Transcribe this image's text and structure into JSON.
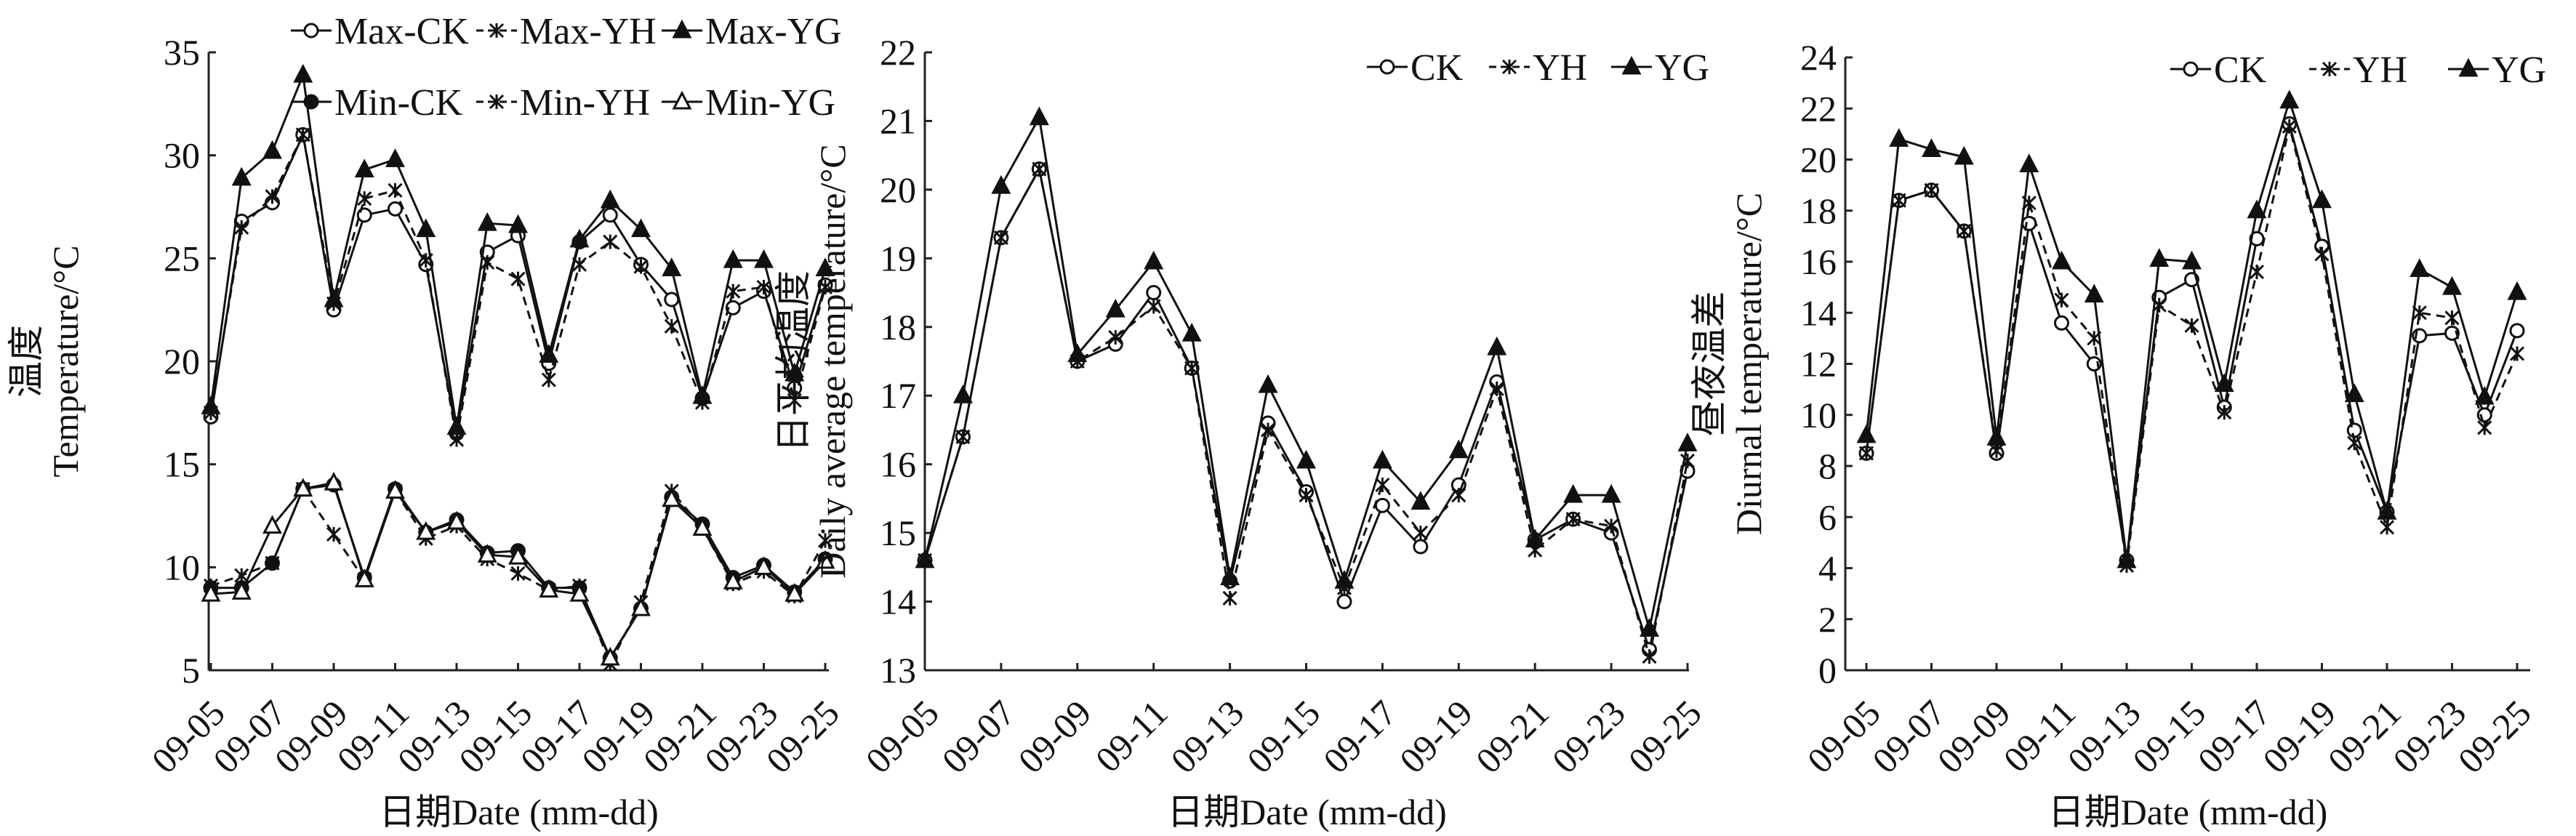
{
  "chart_data": [
    {
      "type": "line",
      "title": "",
      "xlabel": "日期Date (mm-dd)",
      "ylabel_cn": "温度",
      "ylabel": "Temperature/°C",
      "ylim": [
        5,
        35
      ],
      "yticks": [
        "5",
        "10",
        "15",
        "20",
        "25",
        "30",
        "35"
      ],
      "categories": [
        "09-05",
        "09-06",
        "09-07",
        "09-08",
        "09-09",
        "09-10",
        "09-11",
        "09-12",
        "09-13",
        "09-14",
        "09-15",
        "09-16",
        "09-17",
        "09-18",
        "09-19",
        "09-20",
        "09-21",
        "09-22",
        "09-23",
        "09-24",
        "09-25"
      ],
      "xticks": [
        "09-05",
        "09-07",
        "09-09",
        "09-11",
        "09-13",
        "09-15",
        "09-17",
        "09-19",
        "09-21",
        "09-23",
        "09-25"
      ],
      "legend_position": "top-right",
      "series": [
        {
          "name": "Max-CK",
          "values": [
            17.3,
            26.8,
            27.7,
            31.0,
            22.5,
            27.1,
            27.4,
            24.7,
            16.5,
            25.3,
            26.1,
            19.9,
            25.8,
            27.1,
            24.7,
            23.0,
            18.2,
            22.6,
            23.4,
            18.7,
            23.7
          ]
        },
        {
          "name": "Max-YH",
          "values": [
            17.5,
            26.5,
            28.0,
            31.0,
            22.8,
            27.9,
            28.3,
            24.9,
            16.2,
            24.8,
            24.0,
            19.1,
            24.7,
            25.8,
            24.6,
            21.7,
            18.0,
            23.4,
            23.6,
            18.1,
            23.6
          ]
        },
        {
          "name": "Max-YG",
          "values": [
            17.8,
            28.9,
            30.2,
            33.9,
            23.0,
            29.3,
            29.8,
            26.4,
            16.8,
            26.7,
            26.6,
            20.3,
            25.9,
            27.8,
            26.4,
            24.5,
            18.3,
            24.9,
            24.9,
            19.4,
            24.5
          ]
        },
        {
          "name": "Min-CK",
          "values": [
            9.0,
            9.0,
            10.2,
            13.8,
            14.0,
            9.5,
            13.8,
            11.7,
            12.3,
            10.7,
            10.8,
            9.0,
            9.0,
            5.6,
            8.0,
            13.4,
            12.1,
            9.5,
            10.1,
            8.8,
            10.4
          ]
        },
        {
          "name": "Min-YH",
          "values": [
            9.1,
            9.6,
            10.2,
            13.8,
            11.6,
            9.4,
            13.7,
            11.4,
            12.0,
            10.4,
            9.7,
            8.9,
            9.1,
            5.3,
            8.3,
            13.7,
            11.9,
            9.2,
            9.8,
            8.6,
            11.3
          ]
        },
        {
          "name": "Min-YG",
          "values": [
            8.7,
            8.8,
            12.0,
            13.8,
            14.1,
            9.4,
            13.7,
            11.7,
            12.2,
            10.6,
            10.5,
            8.9,
            8.7,
            5.6,
            8.0,
            13.3,
            11.9,
            9.3,
            10.0,
            8.7,
            10.3
          ]
        }
      ]
    },
    {
      "type": "line",
      "title": "",
      "xlabel": "日期Date (mm-dd)",
      "ylabel_cn": "日平均温度",
      "ylabel": "Daily average temperature/°C",
      "ylim": [
        13,
        22
      ],
      "yticks": [
        "13",
        "14",
        "15",
        "16",
        "17",
        "18",
        "19",
        "20",
        "21",
        "22"
      ],
      "categories": [
        "09-05",
        "09-06",
        "09-07",
        "09-08",
        "09-09",
        "09-10",
        "09-11",
        "09-12",
        "09-13",
        "09-14",
        "09-15",
        "09-16",
        "09-17",
        "09-18",
        "09-19",
        "09-20",
        "09-21",
        "09-22",
        "09-23",
        "09-24",
        "09-25"
      ],
      "xticks": [
        "09-05",
        "09-07",
        "09-09",
        "09-11",
        "09-13",
        "09-15",
        "09-17",
        "09-19",
        "09-21",
        "09-23",
        "09-25"
      ],
      "legend_position": "top-right",
      "series": [
        {
          "name": "CK",
          "values": [
            14.6,
            16.4,
            19.3,
            20.3,
            17.5,
            17.75,
            18.5,
            17.4,
            14.3,
            16.6,
            15.6,
            14.0,
            15.4,
            14.8,
            15.7,
            17.2,
            14.9,
            15.2,
            15.0,
            13.3,
            15.9
          ]
        },
        {
          "name": "YH",
          "values": [
            14.6,
            16.4,
            19.3,
            20.3,
            17.5,
            17.85,
            18.3,
            17.4,
            14.05,
            16.5,
            15.55,
            14.2,
            15.7,
            15.0,
            15.55,
            17.1,
            14.75,
            15.2,
            15.1,
            13.2,
            16.05
          ]
        },
        {
          "name": "YG",
          "values": [
            14.6,
            17.0,
            20.05,
            21.05,
            17.6,
            18.25,
            18.95,
            17.9,
            14.35,
            17.15,
            16.05,
            14.3,
            16.05,
            15.45,
            16.2,
            17.7,
            14.9,
            15.55,
            15.55,
            13.6,
            16.3
          ]
        }
      ]
    },
    {
      "type": "line",
      "title": "",
      "xlabel": "日期Date (mm-dd)",
      "ylabel_cn": "昼夜温差",
      "ylabel": "Diurnal temperature/°C",
      "ylim": [
        0,
        24
      ],
      "yticks": [
        "0",
        "2",
        "4",
        "6",
        "8",
        "10",
        "12",
        "14",
        "16",
        "18",
        "20",
        "22",
        "24"
      ],
      "categories": [
        "09-05",
        "09-06",
        "09-07",
        "09-08",
        "09-09",
        "09-10",
        "09-11",
        "09-12",
        "09-13",
        "09-14",
        "09-15",
        "09-16",
        "09-17",
        "09-18",
        "09-19",
        "09-20",
        "09-21",
        "09-22",
        "09-23",
        "09-24",
        "09-25"
      ],
      "xticks": [
        "09-05",
        "09-07",
        "09-09",
        "09-11",
        "09-13",
        "09-15",
        "09-17",
        "09-19",
        "09-21",
        "09-23",
        "09-25"
      ],
      "legend_position": "top-right",
      "series": [
        {
          "name": "CK",
          "values": [
            8.5,
            18.4,
            18.8,
            17.2,
            8.5,
            17.5,
            13.6,
            12.0,
            4.3,
            14.6,
            15.3,
            10.3,
            16.9,
            21.4,
            16.6,
            9.4,
            6.2,
            13.1,
            13.2,
            10.0,
            13.3
          ]
        },
        {
          "name": "YH",
          "values": [
            8.5,
            18.4,
            18.8,
            17.2,
            8.6,
            18.3,
            14.5,
            13.0,
            4.1,
            14.3,
            13.5,
            10.1,
            15.6,
            21.3,
            16.3,
            8.9,
            5.6,
            14.0,
            13.8,
            9.5,
            12.4
          ]
        },
        {
          "name": "YG",
          "values": [
            9.2,
            20.8,
            20.4,
            20.1,
            9.1,
            19.8,
            16.0,
            14.7,
            4.3,
            16.1,
            16.0,
            11.2,
            18.0,
            22.3,
            18.4,
            10.8,
            6.2,
            15.7,
            15.0,
            10.7,
            14.8
          ]
        }
      ]
    }
  ]
}
